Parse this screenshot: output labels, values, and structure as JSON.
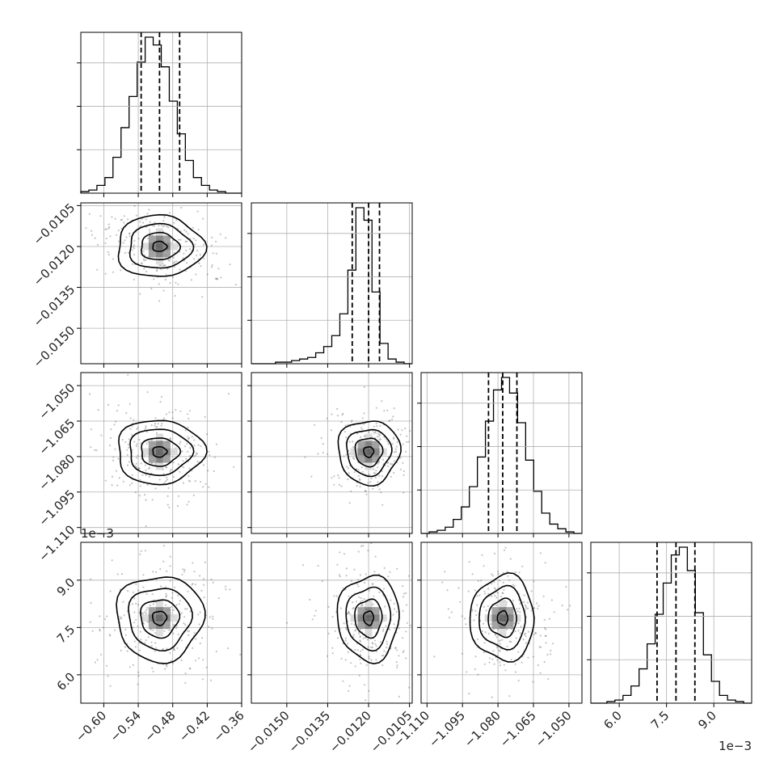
{
  "chart_data": {
    "type": "corner",
    "parameters": [
      {
        "axis_range": [
          -0.64,
          -0.36
        ],
        "ticks": [
          -0.6,
          -0.54,
          -0.48,
          -0.42,
          -0.36
        ],
        "tick_labels": [
          "−0.60",
          "−0.54",
          "−0.48",
          "−0.42",
          "−0.36"
        ],
        "quantiles": [
          -0.535,
          -0.503,
          -0.468
        ],
        "offset_label": ""
      },
      {
        "axis_range": [
          -0.0163,
          -0.0104
        ],
        "ticks": [
          -0.015,
          -0.0135,
          -0.012,
          -0.0105
        ],
        "tick_labels": [
          "−0.0150",
          "−0.0135",
          "−0.0120",
          "−0.0105"
        ],
        "quantiles": [
          -0.0126,
          -0.012,
          -0.0116
        ],
        "offset_label": ""
      },
      {
        "axis_range": [
          -1.1125,
          -1.0445
        ],
        "ticks": [
          -1.11,
          -1.095,
          -1.08,
          -1.065,
          -1.05
        ],
        "tick_labels": [
          "−1.110",
          "−1.095",
          "−1.080",
          "−1.065",
          "−1.050"
        ],
        "quantiles": [
          -1.084,
          -1.078,
          -1.072
        ],
        "offset_label": ""
      },
      {
        "axis_range": [
          0.0051,
          0.0102
        ],
        "ticks": [
          0.006,
          0.0075,
          0.009
        ],
        "tick_labels": [
          "6.0",
          "7.5",
          "9.0"
        ],
        "quantiles": [
          0.0072,
          0.0078,
          0.0084
        ],
        "offset_label": "1e−3"
      }
    ],
    "histograms": [
      {
        "counts": [
          1,
          2,
          5,
          10,
          23,
          42,
          62,
          84,
          100,
          95,
          81,
          59,
          38,
          21,
          10,
          5,
          2,
          1,
          0,
          0
        ]
      },
      {
        "counts": [
          0,
          0,
          0,
          1,
          1,
          2,
          3,
          4,
          7,
          11,
          18,
          32,
          60,
          100,
          92,
          46,
          13,
          3,
          1,
          0
        ]
      },
      {
        "counts": [
          0,
          1,
          2,
          4,
          9,
          17,
          30,
          49,
          72,
          92,
          100,
          90,
          71,
          47,
          27,
          13,
          6,
          3,
          1,
          0
        ]
      },
      {
        "counts": [
          0,
          0,
          1,
          2,
          5,
          11,
          22,
          38,
          57,
          77,
          95,
          100,
          85,
          58,
          31,
          14,
          5,
          2,
          1,
          0
        ]
      }
    ],
    "contour_levels": [
      "0.5σ",
      "1σ",
      "1.5σ",
      "2σ"
    ],
    "grid": true,
    "colors": {
      "line": "#000000",
      "points": "#555555",
      "grid": "#b0b0b0"
    }
  }
}
